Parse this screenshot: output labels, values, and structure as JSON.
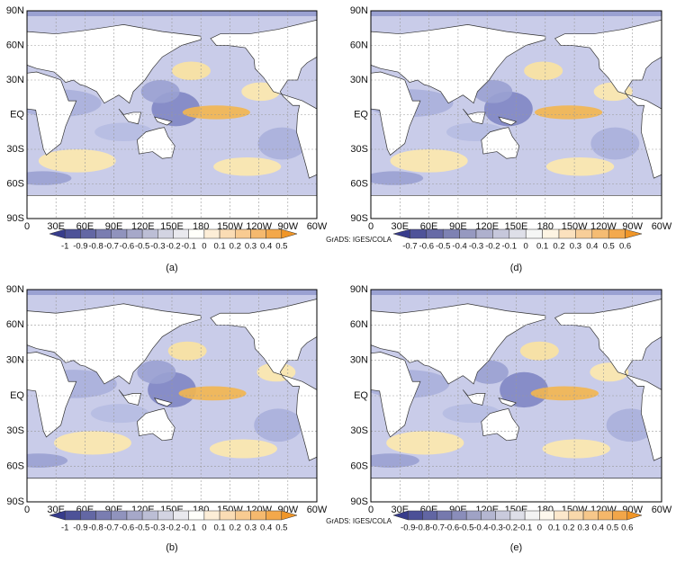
{
  "panels": [
    {
      "label": "(a)",
      "lat_labels": [
        "90N",
        "60N",
        "30N",
        "EQ",
        "30S",
        "60S",
        "90S"
      ],
      "lon_labels": [
        "0",
        "30E",
        "60E",
        "90E",
        "120E",
        "150E",
        "180",
        "150W",
        "120W",
        "90W",
        "60W"
      ],
      "colorbar": {
        "labels": [
          "-1",
          "-0.9",
          "-0.8",
          "-0.7",
          "-0.6",
          "-0.5",
          "-0.3",
          "-0.2",
          "-0.1",
          "0",
          "0.1",
          "0.2",
          "0.3",
          "0.4",
          "0.5"
        ]
      }
    },
    {
      "label": "(d)",
      "lat_labels": [
        "90N",
        "60N",
        "30N",
        "EQ",
        "30S",
        "60S",
        "90S"
      ],
      "lon_labels": [
        "0",
        "30E",
        "60E",
        "90E",
        "120E",
        "150E",
        "180",
        "150W",
        "120W",
        "90W",
        "60W"
      ],
      "colorbar": {
        "credit": "GrADS: IGES/COLA",
        "labels": [
          "-0.7",
          "-0.6",
          "-0.5",
          "-0.4",
          "-0.3",
          "-0.2",
          "-0.1",
          "0",
          "0.1",
          "0.2",
          "0.3",
          "0.4",
          "0.5",
          "0.6"
        ]
      }
    },
    {
      "label": "(b)",
      "lat_labels": [
        "90N",
        "60N",
        "30N",
        "EQ",
        "30S",
        "60S",
        "90S"
      ],
      "lon_labels": [
        "0",
        "30E",
        "60E",
        "90E",
        "120E",
        "150E",
        "180",
        "150W",
        "120W",
        "90W",
        "60W"
      ],
      "colorbar": {
        "labels": [
          "-1",
          "-0.9",
          "-0.8",
          "-0.7",
          "-0.6",
          "-0.5",
          "-0.3",
          "-0.2",
          "-0.1",
          "0",
          "0.1",
          "0.2",
          "0.3",
          "0.4",
          "0.5"
        ]
      }
    },
    {
      "label": "(e)",
      "lat_labels": [
        "90N",
        "60N",
        "30N",
        "EQ",
        "30S",
        "60S",
        "90S"
      ],
      "lon_labels": [
        "0",
        "30E",
        "60E",
        "90E",
        "120E",
        "150E",
        "180",
        "150W",
        "120W",
        "90W",
        "60W"
      ],
      "colorbar": {
        "credit": "GrADS: IGES/COLA",
        "labels": [
          "-0.9",
          "-0.8",
          "-0.7",
          "-0.6",
          "-0.5",
          "-0.4",
          "-0.3",
          "-0.2",
          "-0.1",
          "0",
          "0.1",
          "0.2",
          "0.3",
          "0.4",
          "0.5",
          "0.6"
        ]
      }
    }
  ]
}
